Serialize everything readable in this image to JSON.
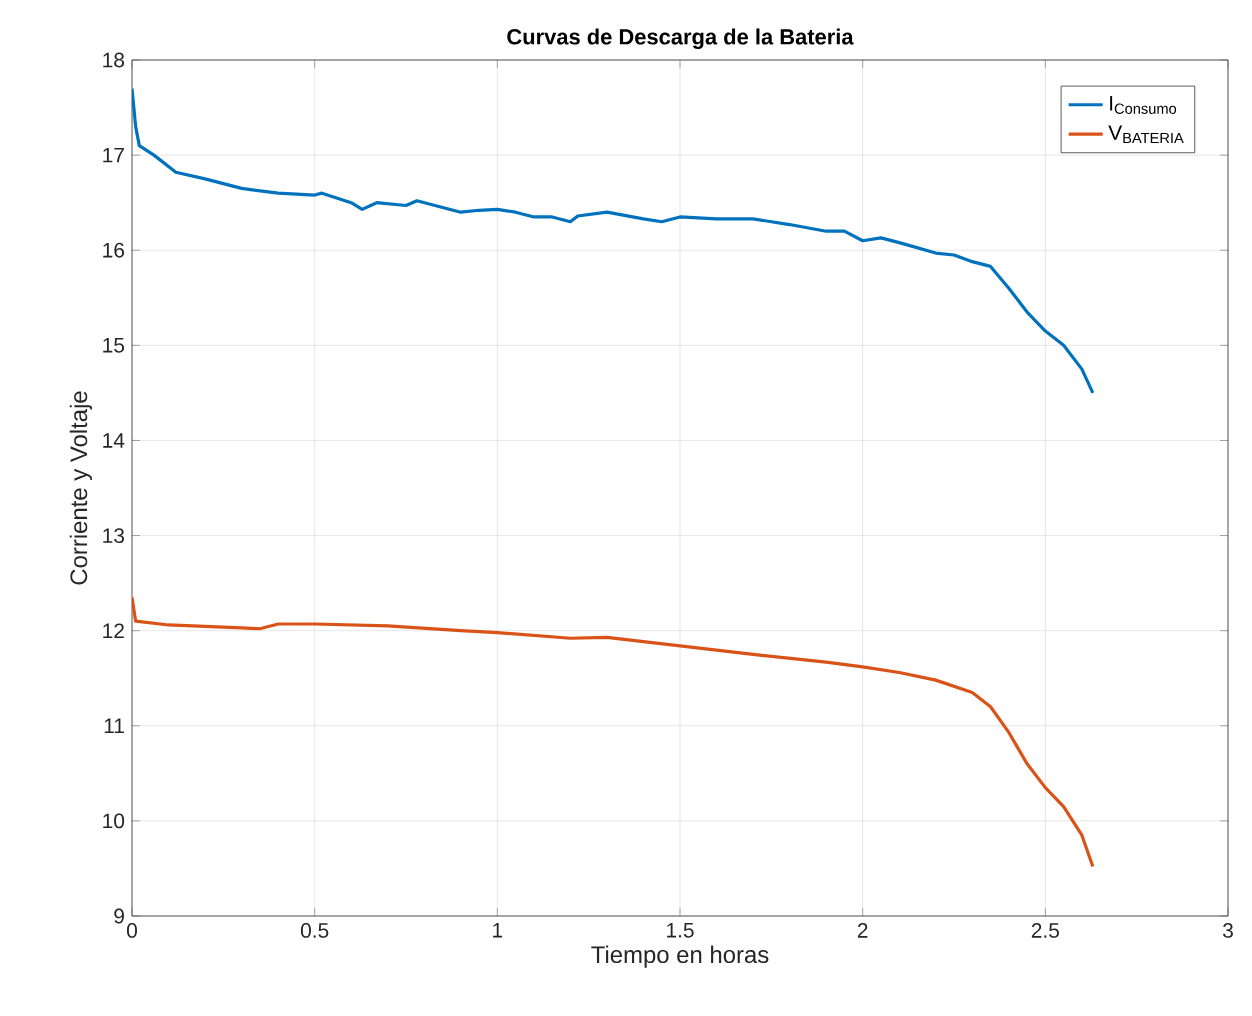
{
  "chart_data": {
    "type": "line",
    "title": "Curvas de Descarga de la Bateria",
    "xlabel": "Tiempo en horas",
    "ylabel": "Corriente y Voltaje",
    "xlim": [
      0,
      3
    ],
    "ylim": [
      9,
      18
    ],
    "xticks": [
      0,
      0.5,
      1,
      1.5,
      2,
      2.5,
      3
    ],
    "yticks": [
      9,
      10,
      11,
      12,
      13,
      14,
      15,
      16,
      17,
      18
    ],
    "grid": true,
    "legend": "top right",
    "line_style": "solid",
    "series": [
      {
        "name": "I$_{Consumo}$",
        "color": "#0072bd",
        "x": [
          0,
          0.01,
          0.02,
          0.06,
          0.12,
          0.2,
          0.3,
          0.4,
          0.5,
          0.52,
          0.6,
          0.63,
          0.67,
          0.75,
          0.78,
          0.85,
          0.9,
          0.95,
          1.0,
          1.05,
          1.1,
          1.15,
          1.2,
          1.22,
          1.3,
          1.4,
          1.45,
          1.5,
          1.6,
          1.7,
          1.8,
          1.9,
          1.95,
          2.0,
          2.05,
          2.1,
          2.2,
          2.25,
          2.3,
          2.35,
          2.4,
          2.45,
          2.5,
          2.55,
          2.6,
          2.63
        ],
        "values": [
          17.7,
          17.3,
          17.1,
          17.0,
          16.82,
          16.75,
          16.65,
          16.6,
          16.58,
          16.6,
          16.5,
          16.43,
          16.5,
          16.47,
          16.52,
          16.45,
          16.4,
          16.42,
          16.43,
          16.4,
          16.35,
          16.35,
          16.3,
          16.36,
          16.4,
          16.33,
          16.3,
          16.35,
          16.33,
          16.33,
          16.27,
          16.2,
          16.2,
          16.1,
          16.13,
          16.08,
          15.97,
          15.95,
          15.88,
          15.83,
          15.6,
          15.35,
          15.15,
          15.0,
          14.75,
          14.5
        ]
      },
      {
        "name": "V$_{BATERIA}$",
        "color": "#d95319",
        "x": [
          0,
          0.01,
          0.1,
          0.3,
          0.35,
          0.4,
          0.5,
          0.7,
          0.9,
          1.0,
          1.2,
          1.3,
          1.5,
          1.7,
          1.9,
          2.0,
          2.1,
          2.2,
          2.3,
          2.35,
          2.4,
          2.45,
          2.5,
          2.55,
          2.6,
          2.63
        ],
        "values": [
          12.35,
          12.1,
          12.06,
          12.03,
          12.02,
          12.07,
          12.07,
          12.05,
          12.0,
          11.98,
          11.92,
          11.93,
          11.84,
          11.75,
          11.67,
          11.62,
          11.56,
          11.48,
          11.35,
          11.2,
          10.93,
          10.6,
          10.35,
          10.15,
          9.85,
          9.52
        ]
      }
    ]
  }
}
